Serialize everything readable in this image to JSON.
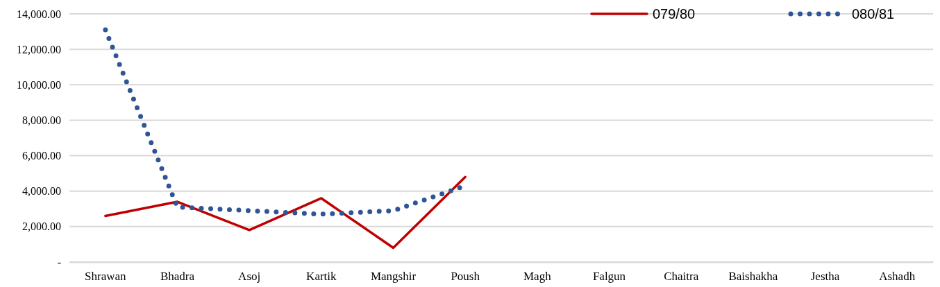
{
  "chart_data": {
    "type": "line",
    "categories": [
      "Shrawan",
      "Bhadra",
      "Asoj",
      "Kartik",
      "Mangshir",
      "Poush",
      "Magh",
      "Falgun",
      "Chaitra",
      "Baishakha",
      "Jestha",
      "Ashadh"
    ],
    "series": [
      {
        "name": "079/80",
        "color": "#c00000",
        "line_style": "solid",
        "values": [
          2600,
          3400,
          1800,
          3600,
          800,
          4800,
          null,
          null,
          null,
          null,
          null,
          null
        ]
      },
      {
        "name": "080/81",
        "color": "#2f5597",
        "line_style": "dotted",
        "values": [
          13100,
          3100,
          2900,
          2700,
          2900,
          4300,
          null,
          null,
          null,
          null,
          null,
          null
        ]
      }
    ],
    "ylim": [
      0,
      14000
    ],
    "yticks": [
      {
        "value": 0,
        "label": "-"
      },
      {
        "value": 2000,
        "label": "2,000.00"
      },
      {
        "value": 4000,
        "label": "4,000.00"
      },
      {
        "value": 6000,
        "label": "6,000.00"
      },
      {
        "value": 8000,
        "label": "8,000.00"
      },
      {
        "value": 10000,
        "label": "10,000.00"
      },
      {
        "value": 12000,
        "label": "12,000.00"
      },
      {
        "value": 14000,
        "label": "14,000.00"
      }
    ],
    "grid": true,
    "legend": "top right",
    "marker": "none"
  }
}
